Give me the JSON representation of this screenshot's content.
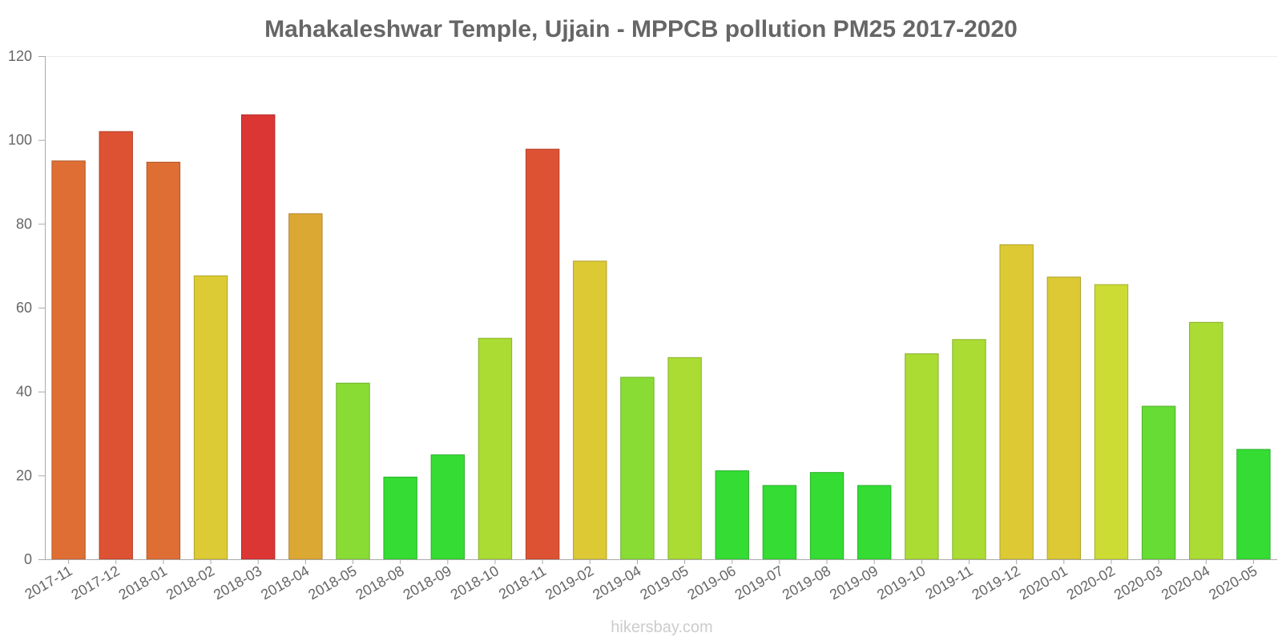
{
  "chart_data": {
    "type": "bar",
    "title": "Mahakaleshwar Temple, Ujjain - MPPCB pollution PM25 2017-2020",
    "xlabel": "",
    "ylabel": "",
    "ylim": [
      0,
      120
    ],
    "yticks": [
      0,
      20,
      40,
      60,
      80,
      100,
      120
    ],
    "categories": [
      "2017-11",
      "2017-12",
      "2018-01",
      "2018-02",
      "2018-03",
      "2018-04",
      "2018-05",
      "2018-08",
      "2018-09",
      "2018-10",
      "2018-11",
      "2019-02",
      "2019-04",
      "2019-05",
      "2019-06",
      "2019-07",
      "2019-08",
      "2019-09",
      "2019-10",
      "2019-11",
      "2019-12",
      "2020-01",
      "2020-02",
      "2020-03",
      "2020-04",
      "2020-05"
    ],
    "values": [
      95,
      102,
      94.7,
      67.6,
      106,
      82.4,
      42,
      19.6,
      24.9,
      52.7,
      97.8,
      71.1,
      43.4,
      48.1,
      21.1,
      17.6,
      20.7,
      17.6,
      49,
      52.4,
      75,
      67.3,
      65.5,
      36.5,
      56.5,
      26.2
    ],
    "colors": [
      "#de6e34",
      "#de5234",
      "#de6e34",
      "#dccb34",
      "#dc3634",
      "#dca834",
      "#88dc34",
      "#34dc34",
      "#34dc34",
      "#aadc34",
      "#de5234",
      "#dcc934",
      "#88dc34",
      "#aadc34",
      "#34dc34",
      "#34dc34",
      "#34dc34",
      "#34dc34",
      "#aadc34",
      "#aadc34",
      "#dcc934",
      "#dcc934",
      "#ccdc34",
      "#66dc34",
      "#aadc34",
      "#34dc34"
    ],
    "grid": false,
    "legend": "none"
  },
  "watermark": "hikersbay.com"
}
